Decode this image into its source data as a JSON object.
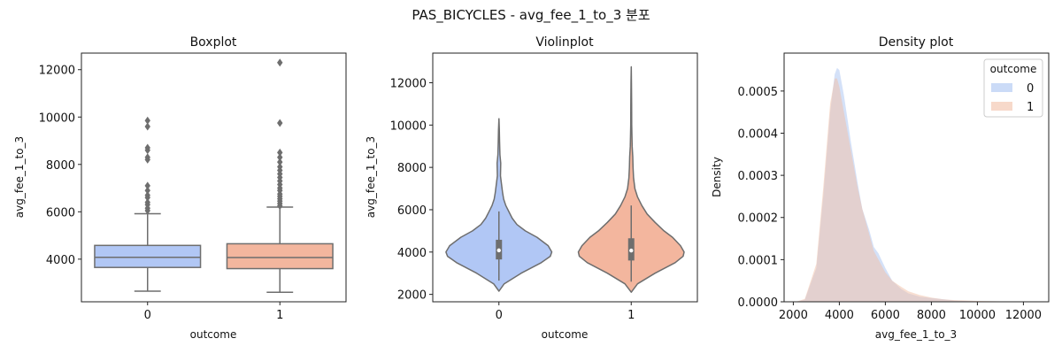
{
  "suptitle": "PAS_BICYCLES - avg_fee_1_to_3 분포",
  "colors": {
    "c0": "#b1c7f5",
    "c1": "#f3b69e",
    "line": "#6e6e6e",
    "kde0": "#a9c3f2",
    "kde1": "#f2bfa6"
  },
  "chart_data": [
    {
      "type": "boxplot",
      "title": "Boxplot",
      "xlabel": "outcome",
      "ylabel": "avg_fee_1_to_3",
      "ylim": [
        2200,
        12700
      ],
      "yticks": [
        4000,
        6000,
        8000,
        10000,
        12000
      ],
      "categories": [
        "0",
        "1"
      ],
      "boxes": [
        {
          "name": "0",
          "whisker_low": 2650,
          "q1": 3650,
          "median": 4080,
          "q3": 4580,
          "whisker_high": 5920,
          "outliers": [
            6050,
            6150,
            6300,
            6400,
            6600,
            6700,
            6900,
            7100,
            8200,
            8300,
            8600,
            8700,
            9600,
            9850
          ]
        },
        {
          "name": "1",
          "whisker_low": 2600,
          "q1": 3600,
          "median": 4070,
          "q3": 4650,
          "whisker_high": 6200,
          "outliers": [
            6250,
            6350,
            6450,
            6550,
            6650,
            6750,
            6900,
            7000,
            7150,
            7300,
            7450,
            7600,
            7750,
            7900,
            8100,
            8300,
            8500,
            9750,
            12300
          ]
        }
      ]
    },
    {
      "type": "violin",
      "title": "Violinplot",
      "xlabel": "outcome",
      "ylabel": "avg_fee_1_to_3",
      "ylim": [
        1650,
        13400
      ],
      "yticks": [
        2000,
        4000,
        6000,
        8000,
        10000,
        12000
      ],
      "categories": [
        "0",
        "1"
      ],
      "violins": [
        {
          "name": "0",
          "min": 2150,
          "max": 10300,
          "q1": 3650,
          "median": 4080,
          "q3": 4580,
          "whisker_low": 2650,
          "whisker_high": 5920,
          "profile": [
            [
              2150,
              0.0
            ],
            [
              2500,
              0.1
            ],
            [
              3000,
              0.42
            ],
            [
              3500,
              0.8
            ],
            [
              3800,
              0.97
            ],
            [
              4000,
              1.0
            ],
            [
              4300,
              0.93
            ],
            [
              4700,
              0.72
            ],
            [
              5000,
              0.5
            ],
            [
              5300,
              0.34
            ],
            [
              5600,
              0.25
            ],
            [
              5900,
              0.19
            ],
            [
              6200,
              0.13
            ],
            [
              6500,
              0.09
            ],
            [
              6800,
              0.07
            ],
            [
              7200,
              0.05
            ],
            [
              7600,
              0.03
            ],
            [
              8200,
              0.035
            ],
            [
              8600,
              0.02
            ],
            [
              9200,
              0.012
            ],
            [
              9800,
              0.008
            ],
            [
              10300,
              0.0
            ]
          ]
        },
        {
          "name": "1",
          "min": 2100,
          "max": 12750,
          "q1": 3600,
          "median": 4070,
          "q3": 4650,
          "whisker_low": 2600,
          "whisker_high": 6200,
          "profile": [
            [
              2100,
              0.0
            ],
            [
              2500,
              0.12
            ],
            [
              3000,
              0.45
            ],
            [
              3500,
              0.83
            ],
            [
              3800,
              0.98
            ],
            [
              4000,
              1.0
            ],
            [
              4300,
              0.93
            ],
            [
              4700,
              0.78
            ],
            [
              5000,
              0.62
            ],
            [
              5400,
              0.45
            ],
            [
              5800,
              0.3
            ],
            [
              6200,
              0.2
            ],
            [
              6600,
              0.12
            ],
            [
              7000,
              0.07
            ],
            [
              7500,
              0.045
            ],
            [
              8000,
              0.035
            ],
            [
              8500,
              0.03
            ],
            [
              9000,
              0.018
            ],
            [
              10000,
              0.01
            ],
            [
              11000,
              0.007
            ],
            [
              12000,
              0.005
            ],
            [
              12750,
              0.0
            ]
          ]
        }
      ]
    },
    {
      "type": "area",
      "title": "Density plot",
      "xlabel": "avg_fee_1_to_3",
      "ylabel": "Density",
      "xlim": [
        1600,
        13100
      ],
      "ylim": [
        0,
        0.00059
      ],
      "xticks": [
        2000,
        4000,
        6000,
        8000,
        10000,
        12000
      ],
      "yticks": [
        0.0,
        0.0001,
        0.0002,
        0.0003,
        0.0004,
        0.0005
      ],
      "ytick_labels": [
        "0.0000",
        "0.0001",
        "0.0002",
        "0.0003",
        "0.0004",
        "0.0005"
      ],
      "legend": {
        "title": "outcome",
        "placement": "top-right"
      },
      "series": [
        {
          "name": "0",
          "x": [
            2100,
            2500,
            3000,
            3300,
            3600,
            3800,
            3900,
            4000,
            4200,
            4500,
            4800,
            5000,
            5300,
            5500,
            5700,
            6000,
            6300,
            6700,
            7000,
            7500,
            8000,
            8500,
            9000,
            10000,
            11000,
            12000,
            12500
          ],
          "y": [
            0.0,
            5e-06,
            8e-05,
            0.00025,
            0.00045,
            0.00054,
            0.000555,
            0.00055,
            0.00049,
            0.00038,
            0.00028,
            0.00022,
            0.00017,
            0.00013,
            0.000115,
            8e-05,
            5e-05,
            3e-05,
            2e-05,
            1.2e-05,
            9e-06,
            6e-06,
            3e-06,
            1e-06,
            1e-06,
            5e-07,
            0.0
          ]
        },
        {
          "name": "1",
          "x": [
            2100,
            2500,
            3000,
            3300,
            3600,
            3800,
            3900,
            4000,
            4200,
            4500,
            4800,
            5000,
            5300,
            5500,
            5700,
            6000,
            6300,
            6700,
            7000,
            7500,
            8000,
            8500,
            9000,
            10000,
            11000,
            12000,
            12500
          ],
          "y": [
            0.0,
            7e-06,
            9e-05,
            0.00027,
            0.00047,
            0.00053,
            0.00053,
            0.00051,
            0.00045,
            0.00036,
            0.00027,
            0.00022,
            0.00016,
            0.00012,
            0.0001,
            7e-05,
            5e-05,
            3.5e-05,
            2.5e-05,
            1.6e-05,
            1e-05,
            6e-06,
            4e-06,
            2e-06,
            1e-06,
            5e-07,
            0.0
          ]
        }
      ]
    }
  ]
}
